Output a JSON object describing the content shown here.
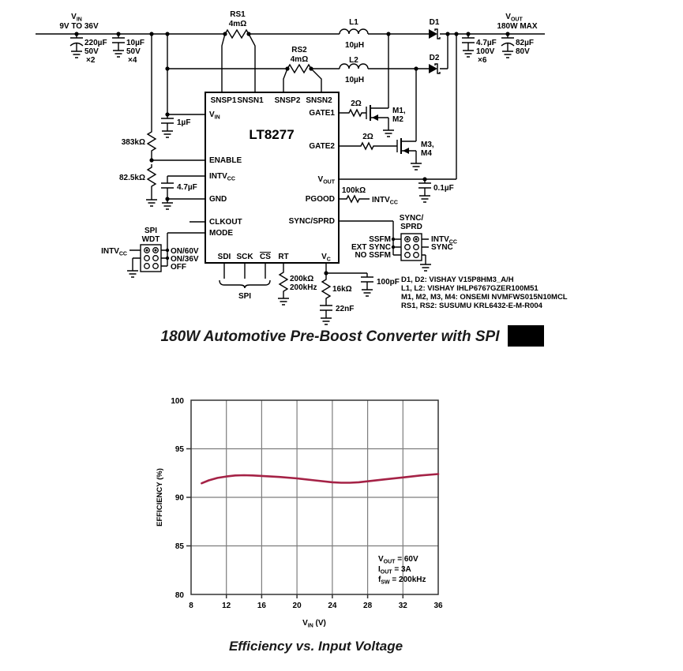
{
  "schematic": {
    "title": "180W Automotive Pre-Boost Converter with SPI",
    "input": {
      "label_main": "V",
      "label_sub": "IN",
      "range": "9V TO 36V",
      "cap1": {
        "value": "220µF",
        "rating": "50V",
        "count": "×2"
      },
      "cap2": {
        "value": "10µF",
        "rating": "50V",
        "count": "×4"
      }
    },
    "sense1": {
      "name": "RS1",
      "value": "4mΩ"
    },
    "sense2": {
      "name": "RS2",
      "value": "4mΩ"
    },
    "l1": {
      "name": "L1",
      "value": "10µH"
    },
    "l2": {
      "name": "L2",
      "value": "10µH"
    },
    "d1": "D1",
    "d2": "D2",
    "output": {
      "label_main": "V",
      "label_sub": "OUT",
      "max": "180W MAX",
      "cap1": {
        "value": "4.7µF",
        "rating": "100V",
        "count": "×6"
      },
      "cap2": {
        "value": "82µF",
        "rating": "80V"
      },
      "cap_ic": "0.1µF"
    },
    "ic": {
      "name": "LT8277",
      "pins": {
        "snsp1": "SNSP1",
        "snsn1": "SNSN1",
        "snsp2": "SNSP2",
        "snsn2": "SNSN2",
        "vin_main": "V",
        "vin_sub": "IN",
        "enable": "ENABLE",
        "intvcc_main": "INTV",
        "intvcc_sub": "CC",
        "gnd": "GND",
        "clkout": "CLKOUT",
        "mode": "MODE",
        "sdi": "SDI",
        "sck": "SCK",
        "cs": "CS",
        "rt": "RT",
        "vc_main": "V",
        "vc_sub": "C",
        "gate1": "GATE1",
        "gate2": "GATE2",
        "vout_main": "V",
        "vout_sub": "OUT",
        "pgood": "PGOOD",
        "sync_sprd": "SYNC/SPRD"
      }
    },
    "left": {
      "r_top": "383kΩ",
      "c_vin": "1µF",
      "r_bot": "82.5kΩ",
      "c_intvcc": "4.7µF"
    },
    "gates": {
      "r1": "2Ω",
      "r2": "2Ω",
      "m12a": "M1,",
      "m12b": "M2",
      "m34a": "M3,",
      "m34b": "M4"
    },
    "pgood": {
      "r": "100kΩ",
      "dest_main": "INTV",
      "dest_sub": "CC"
    },
    "spi_wdt": {
      "title1": "SPI",
      "title2": "WDT",
      "left_main": "INTV",
      "left_sub": "CC",
      "opt1": "ON/60V",
      "opt2": "ON/36V",
      "opt3": "OFF"
    },
    "spi_brace": "SPI",
    "sync_jumper": {
      "title1": "SYNC/",
      "title2": "SPRD",
      "l1": "SSFM",
      "l2": "EXT SYNC",
      "l3": "NO SSFM",
      "r1_main": "INTV",
      "r1_sub": "CC",
      "r2": "SYNC"
    },
    "rt": {
      "r": "200kΩ",
      "f": "200kHz"
    },
    "vc": {
      "r": "16kΩ",
      "c": "22nF",
      "c2": "100pF"
    },
    "notes": [
      "D1, D2: VISHAY V15P8HM3_A/H",
      "L1, L2: VISHAY IHLP6767GZER100M51",
      "M1, M2, M3, M4: ONSEMI NVMFWS015N10MCL",
      "RS1, RS2: SUSUMU KRL6432-E-M-R004"
    ]
  },
  "chart_data": {
    "type": "line",
    "title": "Efficiency vs. Input Voltage",
    "xlabel_main": "V",
    "xlabel_sub": "IN",
    "xlabel_rest": " (V)",
    "ylabel": "EFFICIENCY (%)",
    "xlim": [
      8,
      36
    ],
    "ylim": [
      80,
      100
    ],
    "xticks": [
      8,
      12,
      16,
      20,
      24,
      28,
      32,
      36
    ],
    "yticks": [
      100,
      95,
      90,
      85,
      80
    ],
    "grid": true,
    "legend": "none",
    "curve_color": "#A52246",
    "series": [
      {
        "name": "Efficiency",
        "x": [
          9.2,
          10,
          11,
          12,
          13,
          14,
          15,
          16,
          17,
          18,
          20,
          22,
          24,
          25,
          26,
          27,
          28,
          30,
          32,
          34,
          36
        ],
        "y": [
          91.45,
          91.75,
          92.0,
          92.15,
          92.25,
          92.28,
          92.25,
          92.2,
          92.15,
          92.1,
          91.95,
          91.75,
          91.55,
          91.5,
          91.5,
          91.55,
          91.65,
          91.85,
          92.05,
          92.25,
          92.4
        ]
      }
    ],
    "annotations": [
      {
        "main": "V",
        "sub": "OUT",
        "rest": " = 60V"
      },
      {
        "main": "I",
        "sub": "OUT",
        "rest": " = 3A"
      },
      {
        "main": "f",
        "sub": "SW",
        "rest": " = 200kHz"
      }
    ]
  }
}
